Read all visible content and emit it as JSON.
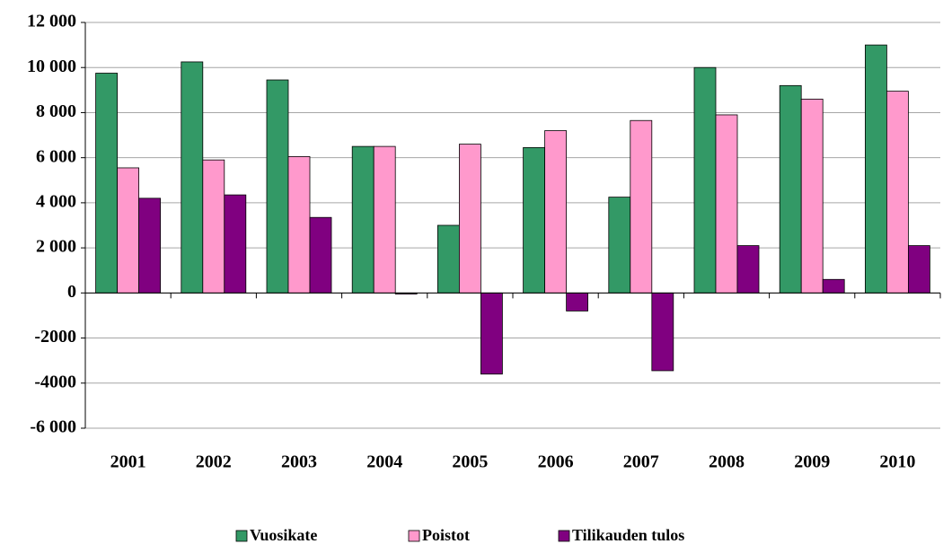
{
  "chart_data": {
    "type": "bar",
    "categories": [
      "2001",
      "2002",
      "2003",
      "2004",
      "2005",
      "2006",
      "2007",
      "2008",
      "2009",
      "2010"
    ],
    "series": [
      {
        "name": "Vuosikate",
        "color": "#339966",
        "values": [
          9750,
          10250,
          9450,
          6500,
          3000,
          6450,
          4250,
          10000,
          9200,
          11000
        ]
      },
      {
        "name": "Poistot",
        "color": "#ff99cc",
        "values": [
          5550,
          5900,
          6050,
          6500,
          6600,
          7200,
          7650,
          7900,
          8600,
          8950
        ]
      },
      {
        "name": "Tilikauden tulos",
        "color": "#800080",
        "values": [
          4200,
          4350,
          3350,
          -50,
          -3600,
          -800,
          -3450,
          2100,
          600,
          2100
        ]
      }
    ],
    "ylim": [
      -6000,
      12000
    ],
    "yticks": [
      {
        "value": -6000,
        "label": "-6 000"
      },
      -4000,
      -2000,
      0,
      {
        "value": 2000,
        "label": "2 000"
      },
      {
        "value": 4000,
        "label": "4 000"
      },
      {
        "value": 6000,
        "label": "6 000"
      },
      {
        "value": 8000,
        "label": "8 000"
      },
      {
        "value": 10000,
        "label": "10 000"
      },
      {
        "value": 12000,
        "label": "12 000"
      }
    ],
    "grid": true,
    "legend": "bottom"
  }
}
